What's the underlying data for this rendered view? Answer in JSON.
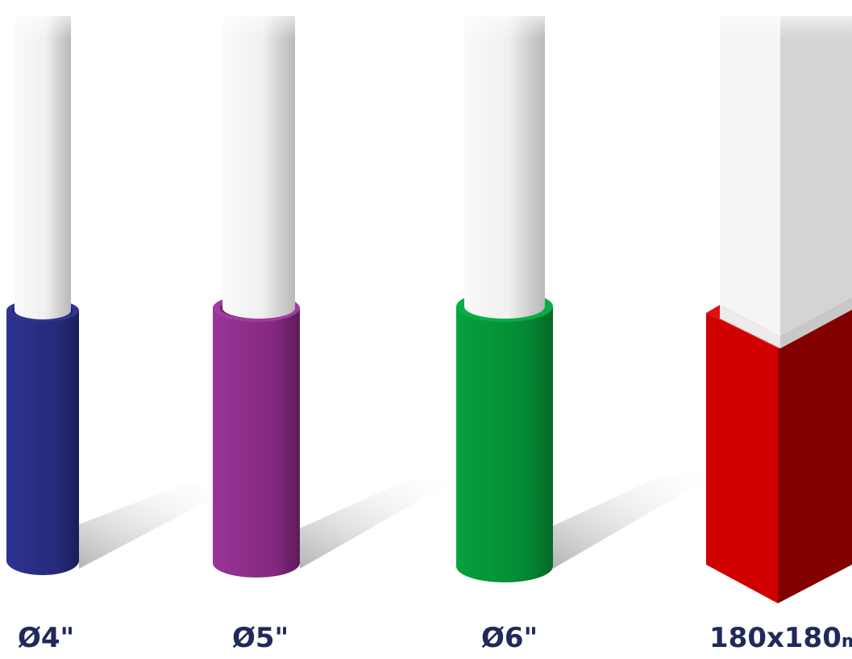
{
  "products": [
    {
      "label": "Ø4\"",
      "unit": "",
      "sleeve_color": "#2c2f86"
    },
    {
      "label": "Ø5\"",
      "unit": "",
      "sleeve_color": "#8e2f8c"
    },
    {
      "label": "Ø6\"",
      "unit": "",
      "sleeve_color": "#049a3a"
    },
    {
      "label": "180x180",
      "unit": "mm",
      "sleeve_color": "#d00000"
    }
  ],
  "label_color": "#1f2a5a"
}
